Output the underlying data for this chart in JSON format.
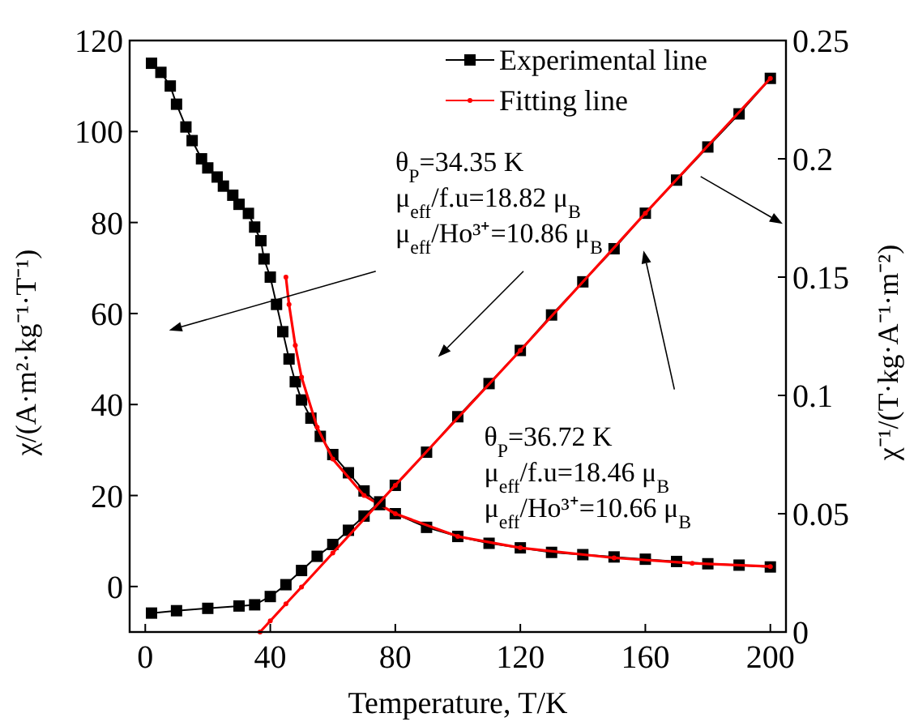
{
  "chart_data": {
    "type": "line",
    "xlabel": "Temperature, T/K",
    "ylabel": "χ/(A·m²·kg⁻¹·T⁻¹)",
    "y2label": "χ⁻¹/(T·kg·A⁻¹·m⁻²)",
    "xlim": [
      -5,
      205
    ],
    "xticks": [
      0,
      40,
      80,
      120,
      160,
      200
    ],
    "ylim": [
      -10,
      120
    ],
    "yticks": [
      0,
      20,
      40,
      60,
      80,
      100,
      120
    ],
    "y2lim": [
      0,
      0.25
    ],
    "y2ticks": [
      0,
      0.05,
      0.1,
      0.15,
      0.2,
      0.25
    ],
    "legend": "top right",
    "grid": false,
    "series": [
      {
        "name": "Experimental line",
        "color": "#000000",
        "marker": "square",
        "x": [
          2,
          5,
          8,
          10,
          13,
          15,
          18,
          20,
          23,
          25,
          28,
          30,
          33,
          35,
          37,
          38,
          40,
          42,
          44,
          46,
          48,
          50,
          53,
          56,
          60,
          65,
          70,
          75,
          80,
          90,
          100,
          110,
          120,
          130,
          140,
          150,
          160,
          170,
          180,
          190,
          200
        ],
        "values": [
          115,
          113,
          110,
          106,
          101,
          98,
          94,
          92,
          90,
          88,
          86,
          84,
          82,
          79,
          76,
          72,
          68,
          62,
          56,
          50,
          45,
          41,
          37,
          33,
          29,
          25,
          21,
          18,
          16,
          13,
          11,
          9.5,
          8.5,
          7.5,
          7,
          6.5,
          6,
          5.5,
          5,
          4.7,
          4.3
        ]
      },
      {
        "name": "Fitting line",
        "color": "#ff0000",
        "marker": "circle",
        "x": [
          45,
          46,
          48,
          50,
          55,
          60,
          70,
          80,
          100,
          120,
          150,
          175,
          200
        ],
        "values": [
          68,
          62,
          53,
          46,
          35,
          28,
          20,
          16,
          11,
          8.5,
          6.3,
          5.1,
          4.4
        ]
      },
      {
        "color": "#000000",
        "marker": "square",
        "axis": "y2",
        "x": [
          2,
          10,
          20,
          30,
          35,
          40,
          45,
          50,
          55,
          60,
          65,
          70,
          75,
          80,
          90,
          100,
          110,
          120,
          130,
          140,
          150,
          160,
          170,
          180,
          190,
          200
        ],
        "values": [
          0.008,
          0.009,
          0.01,
          0.011,
          0.0115,
          0.015,
          0.02,
          0.026,
          0.032,
          0.037,
          0.043,
          0.049,
          0.055,
          0.062,
          0.076,
          0.091,
          0.105,
          0.119,
          0.134,
          0.148,
          0.162,
          0.177,
          0.191,
          0.205,
          0.219,
          0.234
        ]
      },
      {
        "color": "#ff0000",
        "marker": "circle",
        "axis": "y2",
        "x": [
          36.72,
          40,
          45,
          50,
          60,
          80,
          120,
          160,
          200
        ],
        "values": [
          0,
          0.0047,
          0.0119,
          0.019,
          0.0334,
          0.062,
          0.119,
          0.177,
          0.234
        ]
      }
    ],
    "annotations": [
      "θ$_{P}$=34.35 K",
      "μ$_{eff}$/f.u=18.82 μ$_{B}$",
      "μ$_{eff}$/Ho³⁺=10.86 μ$_{B}$",
      "θ$_{P}$=36.72 K",
      "μ$_{eff}$/f.u=18.46 μ$_{B}$",
      "μ$_{eff}$/Ho³⁺=10.66 μ$_{B}$"
    ]
  }
}
